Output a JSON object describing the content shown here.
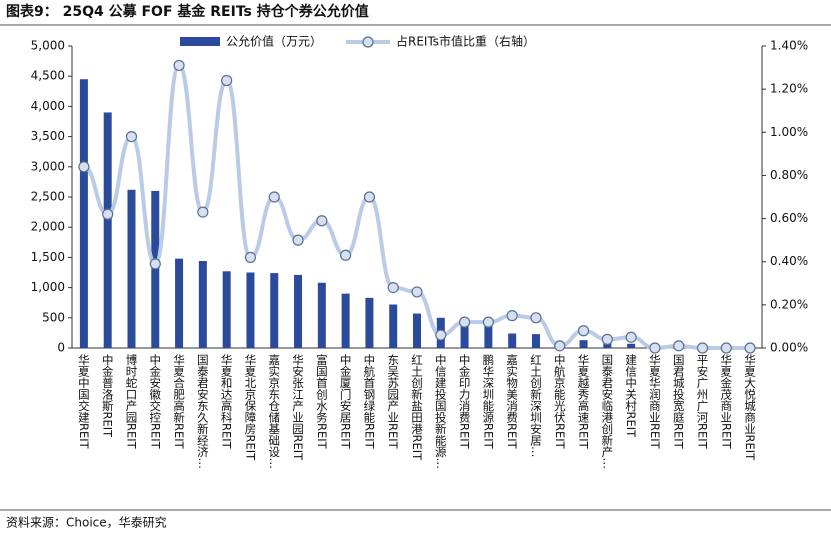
{
  "chart_data": {
    "type": "combo",
    "title": "图表9：  25Q4 公募 FOF 基金 REITs 持仓个券公允价值",
    "source": "资料来源：Choice，华泰研究",
    "categories": [
      "华夏中国交建REIT",
      "中金普洛斯REIT",
      "博时蛇口产园REIT",
      "中金安徽交控REIT",
      "华夏合肥高新REIT",
      "国泰君安东久新经济…",
      "华夏和达高科REIT",
      "华夏北京保障房REIT",
      "嘉实京东仓储基础设…",
      "华安张江产业园REIT",
      "富国首创水务REIT",
      "中金厦门安居REIT",
      "中航首钢绿能REIT",
      "东吴苏园产业REIT",
      "红土创新盐田港REIT",
      "中信建投国投新能源…",
      "中金印力消费REIT",
      "鹏华深圳能源REIT",
      "嘉实物美消费REIT",
      "红土创新深圳安居…",
      "中航京能光伏REIT",
      "华夏越秀高速REIT",
      "国泰君安临港创新产…",
      "建信中关村REIT",
      "华夏华润商业REIT",
      "国君城投宽庭REIT",
      "平安广州广河REIT",
      "华夏金茂商业REIT",
      "华夏大悦城商业REIT"
    ],
    "series": [
      {
        "name": "公允价值（万元）",
        "type": "bar",
        "color": "#2b4a9b",
        "values": [
          4450,
          3900,
          2620,
          2600,
          1480,
          1440,
          1270,
          1250,
          1240,
          1210,
          1080,
          900,
          830,
          720,
          570,
          500,
          370,
          360,
          240,
          230,
          50,
          130,
          80,
          70,
          20,
          30,
          10,
          15,
          10
        ]
      },
      {
        "name": "占REITs市值比重（右轴）",
        "type": "line",
        "axis": "y2",
        "color": "#b9cbe7",
        "values": [
          0.84,
          0.62,
          0.98,
          0.39,
          1.31,
          0.63,
          1.24,
          0.42,
          0.7,
          0.5,
          0.59,
          0.43,
          0.7,
          0.28,
          0.26,
          0.06,
          0.12,
          0.12,
          0.15,
          0.14,
          0.01,
          0.08,
          0.04,
          0.05,
          0.0,
          0.01,
          0.0,
          0.0,
          0.0
        ]
      }
    ],
    "ylim": [
      0,
      5000
    ],
    "yticks": [
      0,
      {
        "value": 500,
        "label": "500"
      },
      {
        "value": 1000,
        "label": "1,000"
      },
      {
        "value": 1500,
        "label": "1,500"
      },
      {
        "value": 2000,
        "label": "2,000"
      },
      {
        "value": 2500,
        "label": "2,500"
      },
      {
        "value": 3000,
        "label": "3,000"
      },
      {
        "value": 3500,
        "label": "3,500"
      },
      {
        "value": 4000,
        "label": "4,000"
      },
      {
        "value": 4500,
        "label": "4,500"
      },
      {
        "value": 5000,
        "label": "5,000"
      }
    ],
    "y2lim": [
      0,
      1.4
    ],
    "y2ticks": [
      {
        "value": 0,
        "label": "0.00%"
      },
      {
        "value": 0.2,
        "label": "0.20%"
      },
      {
        "value": 0.4,
        "label": "0.40%"
      },
      {
        "value": 0.6,
        "label": "0.60%"
      },
      {
        "value": 0.8,
        "label": "0.80%"
      },
      {
        "value": 1.0,
        "label": "1.00%"
      },
      {
        "value": 1.2,
        "label": "1.20%"
      },
      {
        "value": 1.4,
        "label": "1.40%"
      }
    ],
    "grid": false
  }
}
